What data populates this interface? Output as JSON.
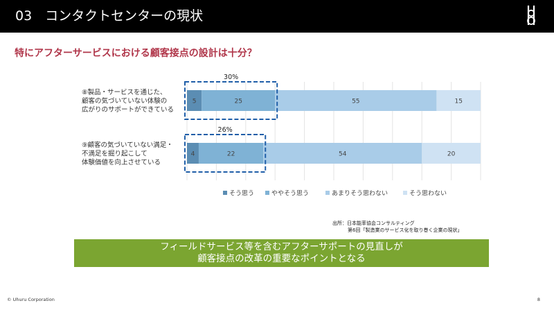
{
  "header": {
    "title": "03　コンタクトセンターの現状"
  },
  "question": "特にアフターサービスにおける顧客接点の設計は十分？",
  "chart_data": {
    "type": "bar",
    "orientation": "horizontal",
    "stacked": "100%",
    "categories": [
      [
        "⑧製品・サービスを通じた、",
        "顧客の気づいていない体験の",
        "広がりのサポートができている"
      ],
      [
        "⑨顧客の気づいていない満足・",
        "不満足を掘り起こして",
        "体験価値を向上させている"
      ]
    ],
    "series": [
      {
        "name": "そう思う",
        "values": [
          5,
          4
        ],
        "color": "#5b8db3"
      },
      {
        "name": "ややそう思う",
        "values": [
          25,
          22
        ],
        "color": "#7fb2d5"
      },
      {
        "name": "あまりそう思わない",
        "values": [
          55,
          54
        ],
        "color": "#a9cce8"
      },
      {
        "name": "そう思わない",
        "values": [
          15,
          20
        ],
        "color": "#cfe2f3"
      }
    ],
    "highlights": [
      "30%",
      "26%"
    ],
    "xlim": [
      0,
      100
    ],
    "legend_position": "bottom",
    "grid": true
  },
  "source": {
    "line1": "出所：日本能率協会コンサルティング",
    "line2": "第6回「製造業のサービス化を取り巻く企業の現状」"
  },
  "callout": {
    "line1": "フィールドサービス等を含むアフターサポートの見直しが",
    "line2": "顧客接点の改革の重要なポイントとなる"
  },
  "footer": {
    "company": "© Uhuru Corporation",
    "page": "8"
  }
}
